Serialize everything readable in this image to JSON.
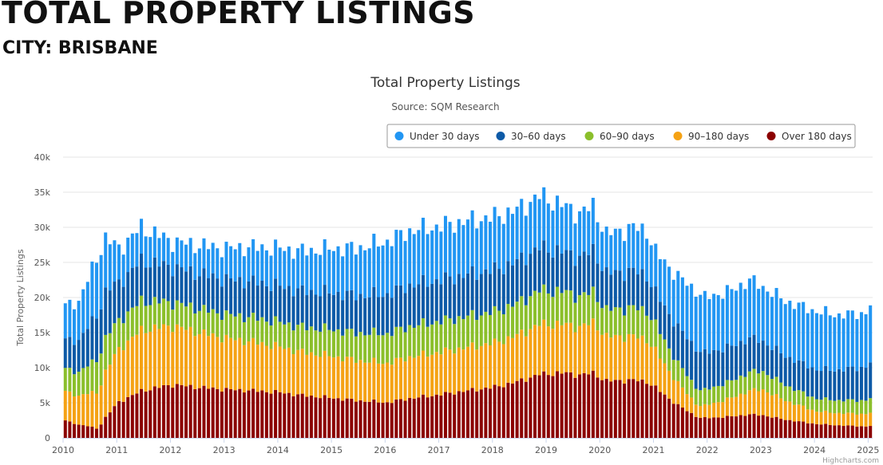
{
  "page": {
    "title": "TOTAL PROPERTY LISTINGS",
    "subtitle": "CITY: BRISBANE"
  },
  "credits": "Highcharts.com",
  "colors": {
    "under_30": "#2196f3",
    "d30_60": "#0d5aa7",
    "d60_90": "#8bbf2b",
    "d90_180": "#f5a214",
    "over_180": "#8b0000",
    "grid": "#e6e6e6",
    "legend_border": "#999999"
  },
  "chart_data": {
    "type": "bar",
    "stacked": true,
    "title": "Total Property Listings",
    "subtitle": "Source: SQM Research",
    "ylabel": "Total Property Listings",
    "xlabel": "",
    "ylim": [
      0,
      40000
    ],
    "y_ticks": [
      0,
      5000,
      10000,
      15000,
      20000,
      25000,
      30000,
      35000,
      40000
    ],
    "y_tick_labels": [
      "0",
      "5k",
      "10k",
      "15k",
      "20k",
      "25k",
      "30k",
      "35k",
      "40k"
    ],
    "x_tick_labels": [
      "2010",
      "2011",
      "2012",
      "2013",
      "2014",
      "2015",
      "2016",
      "2017",
      "2018",
      "2019",
      "2020",
      "2021",
      "2022",
      "2023",
      "2024",
      "2025"
    ],
    "x_start_year": 2010,
    "grid": true,
    "legend_position": "top-right",
    "series": [
      {
        "name": "Under 30 days",
        "key": "under_30"
      },
      {
        "name": "30–60 days",
        "key": "d30_60"
      },
      {
        "name": "60–90 days",
        "key": "d60_90"
      },
      {
        "name": "90–180 days",
        "key": "d90_180"
      },
      {
        "name": "Over 180 days",
        "key": "over_180"
      }
    ],
    "monthly_total_anchors": [
      [
        "2010-01",
        18800
      ],
      [
        "2010-04",
        19500
      ],
      [
        "2010-07",
        24000
      ],
      [
        "2010-10",
        28500
      ],
      [
        "2011-01",
        27000
      ],
      [
        "2011-06",
        30000
      ],
      [
        "2012-01",
        28000
      ],
      [
        "2012-06",
        27500
      ],
      [
        "2013-01",
        27000
      ],
      [
        "2013-06",
        27200
      ],
      [
        "2014-01",
        27000
      ],
      [
        "2014-06",
        26600
      ],
      [
        "2015-01",
        27000
      ],
      [
        "2015-06",
        27000
      ],
      [
        "2016-01",
        28000
      ],
      [
        "2016-06",
        29500
      ],
      [
        "2017-01",
        30200
      ],
      [
        "2017-06",
        30800
      ],
      [
        "2018-01",
        31500
      ],
      [
        "2018-06",
        32500
      ],
      [
        "2018-11",
        34500
      ],
      [
        "2019-03",
        33500
      ],
      [
        "2019-08",
        32000
      ],
      [
        "2019-11",
        33000
      ],
      [
        "2020-02",
        29000
      ],
      [
        "2020-08",
        30000
      ],
      [
        "2020-11",
        29500
      ],
      [
        "2021-01",
        26500
      ],
      [
        "2021-06",
        23000
      ],
      [
        "2021-12",
        20000
      ],
      [
        "2022-06",
        21000
      ],
      [
        "2022-10",
        22500
      ],
      [
        "2023-01",
        21500
      ],
      [
        "2023-06",
        19500
      ],
      [
        "2024-01",
        18000
      ],
      [
        "2024-06",
        17500
      ],
      [
        "2024-12",
        17800
      ],
      [
        "2025-01",
        19000
      ]
    ],
    "share_anchors": {
      "years": [
        2010.0,
        2010.6,
        2011.0,
        2012.0,
        2014.0,
        2016.0,
        2018.0,
        2019.3,
        2020.0,
        2021.0,
        2021.8,
        2023.0,
        2024.0,
        2025.0
      ],
      "over_180": [
        0.13,
        0.05,
        0.19,
        0.27,
        0.24,
        0.18,
        0.23,
        0.28,
        0.28,
        0.27,
        0.14,
        0.15,
        0.11,
        0.09
      ],
      "d90_180": [
        0.22,
        0.2,
        0.28,
        0.3,
        0.24,
        0.2,
        0.2,
        0.21,
        0.22,
        0.2,
        0.08,
        0.17,
        0.1,
        0.1
      ],
      "d60_90": [
        0.17,
        0.18,
        0.15,
        0.12,
        0.13,
        0.15,
        0.14,
        0.14,
        0.13,
        0.14,
        0.11,
        0.12,
        0.1,
        0.11
      ],
      "d30_60": [
        0.22,
        0.25,
        0.2,
        0.18,
        0.19,
        0.2,
        0.19,
        0.17,
        0.18,
        0.17,
        0.27,
        0.2,
        0.23,
        0.27
      ]
    }
  }
}
